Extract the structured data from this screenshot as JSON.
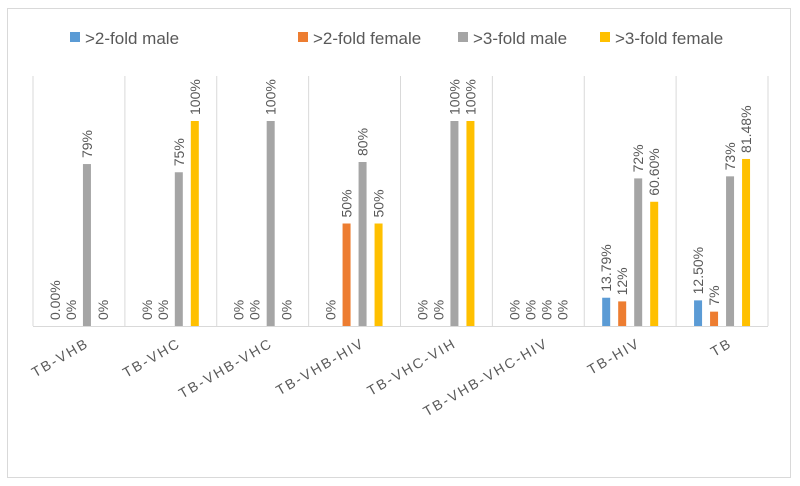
{
  "chart_data": {
    "type": "bar",
    "title": "",
    "xlabel": "",
    "ylabel": "",
    "ylim": [
      0,
      100
    ],
    "grid": false,
    "legend_position": "top",
    "categories": [
      "TB-VHB",
      "TB-VHC",
      "TB-VHB-VHC",
      "TB-VHB-HIV",
      "TB-VHC-VIH",
      "TB-VHB-VHC-HIV",
      "TB-HIV",
      "TB"
    ],
    "series": [
      {
        "name": ">2-fold male",
        "color": "#5b9bd5",
        "values": [
          0,
          0,
          0,
          0,
          0,
          0,
          13.79,
          12.5
        ],
        "labels": [
          "0.00%",
          "0%",
          "0%",
          "0%",
          "0%",
          "0%",
          "13.79%",
          "12.50%"
        ]
      },
      {
        "name": ">2-fold female",
        "color": "#ed7d31",
        "values": [
          0,
          0,
          0,
          50,
          0,
          0,
          12,
          7
        ],
        "labels": [
          "0%",
          "0%",
          "0%",
          "50%",
          "0%",
          "0%",
          "12%",
          "7%"
        ]
      },
      {
        "name": ">3-fold male",
        "color": "#a5a5a5",
        "values": [
          79,
          75,
          100,
          80,
          100,
          0,
          72,
          73
        ],
        "labels": [
          "79%",
          "75%",
          "100%",
          "80%",
          "100%",
          "0%",
          "72%",
          "73%"
        ]
      },
      {
        "name": ">3-fold female",
        "color": "#ffc000",
        "values": [
          0,
          100,
          0,
          50,
          100,
          0,
          60.6,
          81.48
        ],
        "labels": [
          "0%",
          "100%",
          "0%",
          "50%",
          "100%",
          "0%",
          "60.60%",
          "81.48%"
        ]
      }
    ]
  }
}
